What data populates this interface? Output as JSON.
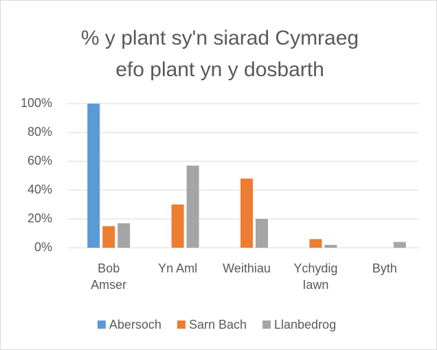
{
  "chart_data": {
    "type": "bar",
    "title": [
      "% y plant sy'n siarad Cymraeg",
      "efo plant yn y dosbarth"
    ],
    "categories": [
      "Bob Amser",
      "Yn Aml",
      "Weithiau",
      "Ychydig Iawn",
      "Byth"
    ],
    "series": [
      {
        "name": "Abersoch",
        "color": "#5b9bd5",
        "values": [
          100,
          0,
          0,
          0,
          0
        ]
      },
      {
        "name": "Sarn Bach",
        "color": "#ed7d31",
        "values": [
          15,
          30,
          48,
          6,
          0
        ]
      },
      {
        "name": "Llanbedrog",
        "color": "#a5a5a5",
        "values": [
          17,
          57,
          20,
          2,
          4
        ]
      }
    ],
    "ylim": [
      0,
      100
    ],
    "yticks": [
      {
        "value": 0,
        "label": "0%"
      },
      {
        "value": 20,
        "label": "20%"
      },
      {
        "value": 40,
        "label": "40%"
      },
      {
        "value": 60,
        "label": "60%"
      },
      {
        "value": 80,
        "label": "80%"
      },
      {
        "value": 100,
        "label": "100%"
      }
    ],
    "grid": true,
    "legend": "bottom"
  }
}
